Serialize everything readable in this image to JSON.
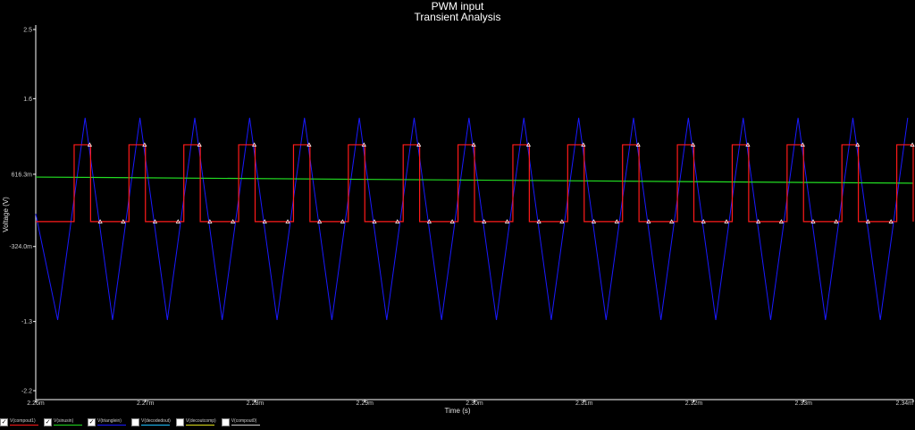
{
  "chart_data": {
    "type": "line",
    "title": "PWM input",
    "subtitle": "Transient Analysis",
    "xlabel": "Time (s)",
    "ylabel": "Voltage (V)",
    "xlim": [
      0.00226,
      0.00234
    ],
    "ylim": [
      -2.2,
      2.5
    ],
    "x_ticks": [
      {
        "value": 0.00226,
        "label": "2.26m"
      },
      {
        "value": 0.00227,
        "label": "2.27m"
      },
      {
        "value": 0.00228,
        "label": "2.28m"
      },
      {
        "value": 0.00229,
        "label": "2.29m"
      },
      {
        "value": 0.0023,
        "label": "2.30m"
      },
      {
        "value": 0.00231,
        "label": "2.31m"
      },
      {
        "value": 0.00232,
        "label": "2.32m"
      },
      {
        "value": 0.00233,
        "label": "2.33m"
      },
      {
        "value": 0.00234,
        "label": "2.34m"
      }
    ],
    "y_ticks": [
      {
        "value": 2.5,
        "label": "2.5"
      },
      {
        "value": 1.6,
        "label": "1.6"
      },
      {
        "value": 0.6163,
        "label": "616.3m"
      },
      {
        "value": -0.324,
        "label": "-324.0m"
      },
      {
        "value": -1.3,
        "label": "-1.3"
      },
      {
        "value": -2.2,
        "label": "-2.2"
      }
    ],
    "grid": false,
    "legend_position": "bottom-left",
    "series": [
      {
        "name": "V(compout1)",
        "color": "#ff1a1a",
        "checked": true,
        "marker": "triangle",
        "waveform": "pulse",
        "low": 0.0,
        "high": 1.0,
        "period": 5e-06,
        "first_rise": 0.0022635,
        "high_duration": 1.5e-06,
        "y_start": 0.0
      },
      {
        "name": "V(sinusin)",
        "color": "#22dd22",
        "checked": true,
        "waveform": "linear",
        "y_start": 0.58,
        "y_end": 0.5
      },
      {
        "name": "V(trianglein)",
        "color": "#1a1aff",
        "checked": true,
        "waveform": "triangle",
        "min": -1.28,
        "max": 1.35,
        "period": 5e-06,
        "first_peak": 0.0022645,
        "y_start": 0.1
      },
      {
        "name": "V(decodedout)",
        "color": "#20c0ff",
        "checked": false
      },
      {
        "name": "V(decoutcomp)",
        "color": "#e0e020",
        "checked": false
      },
      {
        "name": "V(compout0)",
        "color": "#cccccc",
        "checked": false
      }
    ]
  }
}
